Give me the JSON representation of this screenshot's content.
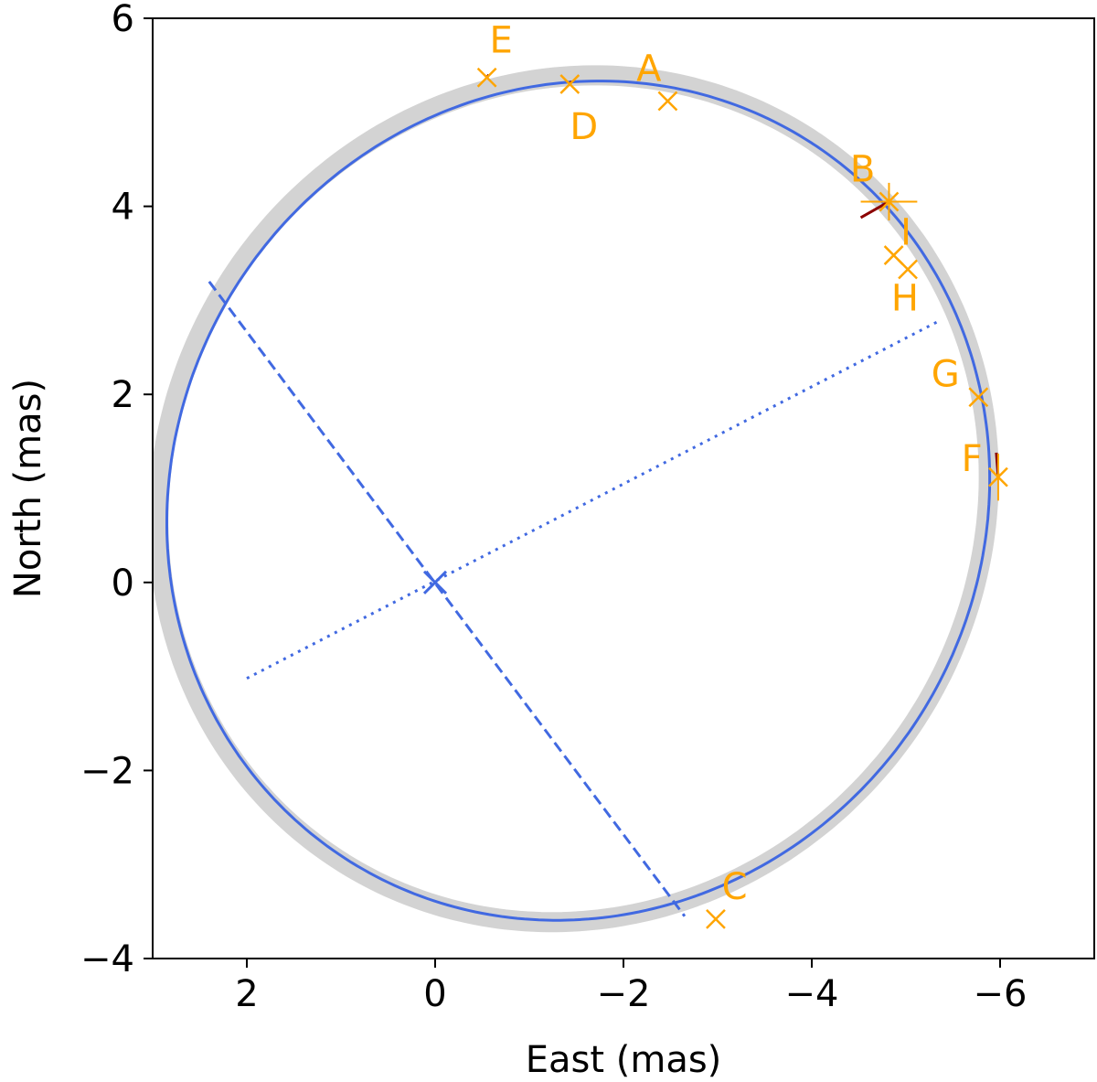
{
  "chart_data": {
    "type": "scatter",
    "title": "",
    "xlabel": "East (mas)",
    "ylabel": "North (mas)",
    "xlim": [
      3.0,
      -7.0
    ],
    "ylim": [
      -4.0,
      6.0
    ],
    "x_inverted": true,
    "xticks": [
      2,
      0,
      -2,
      -4,
      -6
    ],
    "xtick_labels": [
      "2",
      "0",
      "−2",
      "−4",
      "−6"
    ],
    "yticks": [
      -4,
      -2,
      0,
      2,
      4,
      6
    ],
    "ytick_labels": [
      "−4",
      "−2",
      "0",
      "2",
      "4",
      "6"
    ],
    "grid": false,
    "orbit": {
      "center": [
        -1.52,
        0.87
      ],
      "semi_major": 4.54,
      "semi_minor": 4.29,
      "major_axis_angle_deg": 124.0,
      "color": "#4169E1",
      "band_color": "#d3d3d3"
    },
    "major_axis_ends": [
      [
        2.4,
        3.2
      ],
      [
        -2.65,
        -3.55
      ]
    ],
    "minor_axis_ends": [
      [
        2.0,
        -1.02
      ],
      [
        -5.35,
        2.78
      ]
    ],
    "center_marker": [
      0.0,
      0.0
    ],
    "marker_color": "#FFA500",
    "residual_color": "#8B0000",
    "points": [
      {
        "label": "A",
        "x": -2.47,
        "y": 5.12,
        "label_dx": -0.2,
        "label_dy": 0.35
      },
      {
        "label": "B",
        "x": -4.82,
        "y": 4.05,
        "label_dx": -0.28,
        "label_dy": 0.35,
        "xerr": 0.3,
        "yerr": 0.2
      },
      {
        "label": "C",
        "x": -2.98,
        "y": -3.58,
        "label_dx": 0.2,
        "label_dy": 0.35
      },
      {
        "label": "D",
        "x": -1.43,
        "y": 5.3,
        "label_dx": 0.15,
        "label_dy": -0.45
      },
      {
        "label": "E",
        "x": -0.55,
        "y": 5.37,
        "label_dx": 0.15,
        "label_dy": 0.4
      },
      {
        "label": "F",
        "x": -5.98,
        "y": 1.12,
        "label_dx": -0.28,
        "label_dy": 0.2,
        "yerr": 0.25
      },
      {
        "label": "G",
        "x": -5.77,
        "y": 1.97,
        "label_dx": -0.35,
        "label_dy": 0.25
      },
      {
        "label": "H",
        "x": -4.87,
        "y": 3.48,
        "label_dx": 0.12,
        "label_dy": -0.45
      },
      {
        "label": "I",
        "x": -5.02,
        "y": 3.33,
        "label_dx": -0.02,
        "label_dy": 0.4
      }
    ],
    "residuals": [
      {
        "from": [
          -4.82,
          4.05
        ],
        "to": [
          -4.52,
          3.88
        ]
      },
      {
        "from": [
          -5.98,
          1.12
        ],
        "to": [
          -5.96,
          1.38
        ]
      },
      {
        "from": [
          -1.43,
          5.3
        ],
        "to": [
          -1.45,
          5.33
        ]
      },
      {
        "from": [
          -0.55,
          5.37
        ],
        "to": [
          -0.57,
          5.4
        ]
      }
    ]
  }
}
